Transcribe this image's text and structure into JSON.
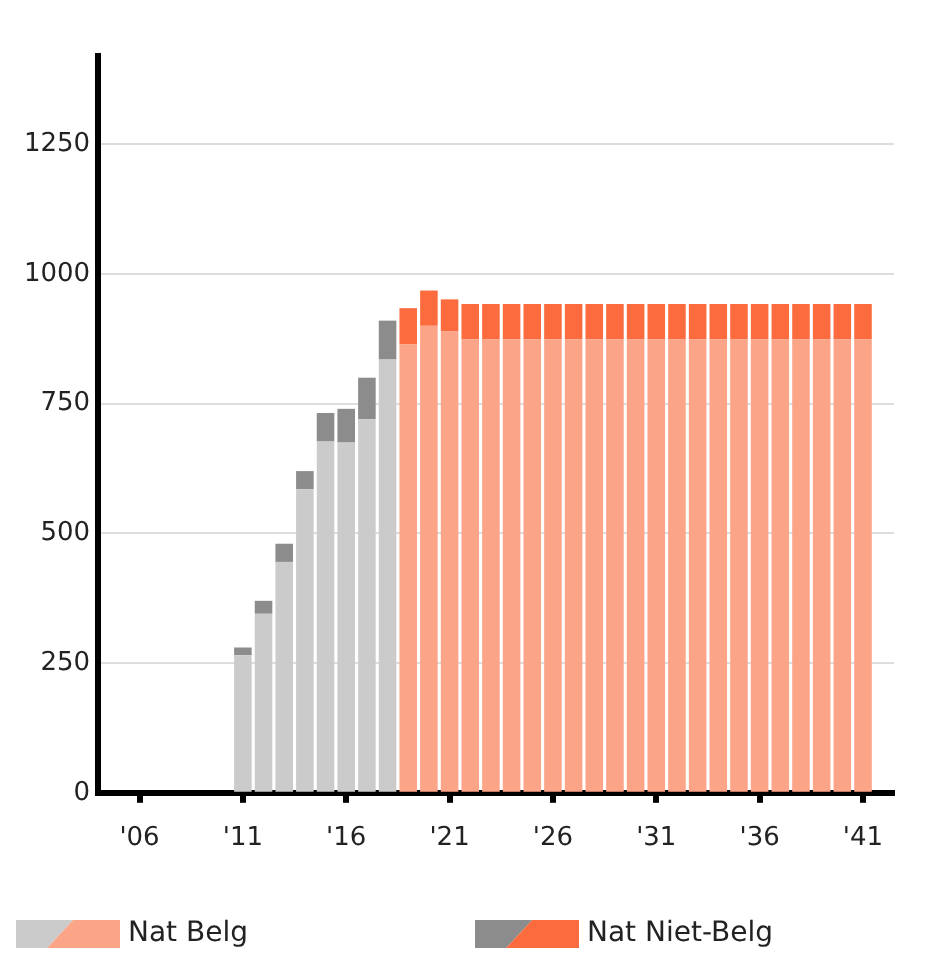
{
  "chart_data": {
    "type": "bar",
    "stacked": true,
    "x": [
      2011,
      2012,
      2013,
      2014,
      2015,
      2016,
      2017,
      2018,
      2019,
      2020,
      2021,
      2022,
      2023,
      2024,
      2025,
      2026,
      2027,
      2028,
      2029,
      2030,
      2031,
      2032,
      2033,
      2034,
      2035,
      2036,
      2037,
      2038,
      2039,
      2040,
      2041
    ],
    "series": [
      {
        "name": "Nat Belg",
        "color": "#fca487",
        "colors": [
          "#cbcbcb",
          "#cbcbcb",
          "#cbcbcb",
          "#cbcbcb",
          "#cbcbcb",
          "#cbcbcb",
          "#cbcbcb",
          "#cbcbcb",
          "#fca487",
          "#fca487",
          "#fca487",
          "#fca487",
          "#fca487",
          "#fca487",
          "#fca487",
          "#fca487",
          "#fca487",
          "#fca487",
          "#fca487",
          "#fca487",
          "#fca487",
          "#fca487",
          "#fca487",
          "#fca487",
          "#fca487",
          "#fca487",
          "#fca487",
          "#fca487",
          "#fca487",
          "#fca487",
          "#fca487"
        ],
        "values": [
          265,
          345,
          445,
          585,
          677,
          675,
          720,
          835,
          864,
          900,
          889,
          874,
          874,
          874,
          874,
          874,
          874,
          874,
          874,
          874,
          874,
          874,
          874,
          874,
          874,
          874,
          874,
          874,
          874,
          874,
          874
        ]
      },
      {
        "name": "Nat Niet-Belg",
        "color": "#fc6b3d",
        "colors": [
          "#8c8c8c",
          "#8c8c8c",
          "#8c8c8c",
          "#8c8c8c",
          "#8c8c8c",
          "#8c8c8c",
          "#8c8c8c",
          "#8c8c8c",
          "#fc6b3d",
          "#fc6b3d",
          "#fc6b3d",
          "#fc6b3d",
          "#fc6b3d",
          "#fc6b3d",
          "#fc6b3d",
          "#fc6b3d",
          "#fc6b3d",
          "#fc6b3d",
          "#fc6b3d",
          "#fc6b3d",
          "#fc6b3d",
          "#fc6b3d",
          "#fc6b3d",
          "#fc6b3d",
          "#fc6b3d",
          "#fc6b3d",
          "#fc6b3d",
          "#fc6b3d",
          "#fc6b3d",
          "#fc6b3d",
          "#fc6b3d"
        ],
        "values": [
          15,
          25,
          35,
          35,
          55,
          65,
          80,
          75,
          70,
          68,
          62,
          68,
          68,
          68,
          68,
          68,
          68,
          68,
          68,
          68,
          68,
          68,
          68,
          68,
          68,
          68,
          68,
          68,
          68,
          68,
          68
        ]
      }
    ],
    "xlim": [
      2004,
      2042.5
    ],
    "xticks": [
      {
        "value": 2006,
        "label": "'06"
      },
      {
        "value": 2011,
        "label": "'11"
      },
      {
        "value": 2016,
        "label": "'16"
      },
      {
        "value": 2021,
        "label": "'21"
      },
      {
        "value": 2026,
        "label": "'26"
      },
      {
        "value": 2031,
        "label": "'31"
      },
      {
        "value": 2036,
        "label": "'36"
      },
      {
        "value": 2041,
        "label": "'41"
      }
    ],
    "ylim": [
      0,
      1420
    ],
    "yticks": [
      0,
      250,
      500,
      750,
      1000,
      1250
    ],
    "grid": "y",
    "legend": "bottom"
  }
}
